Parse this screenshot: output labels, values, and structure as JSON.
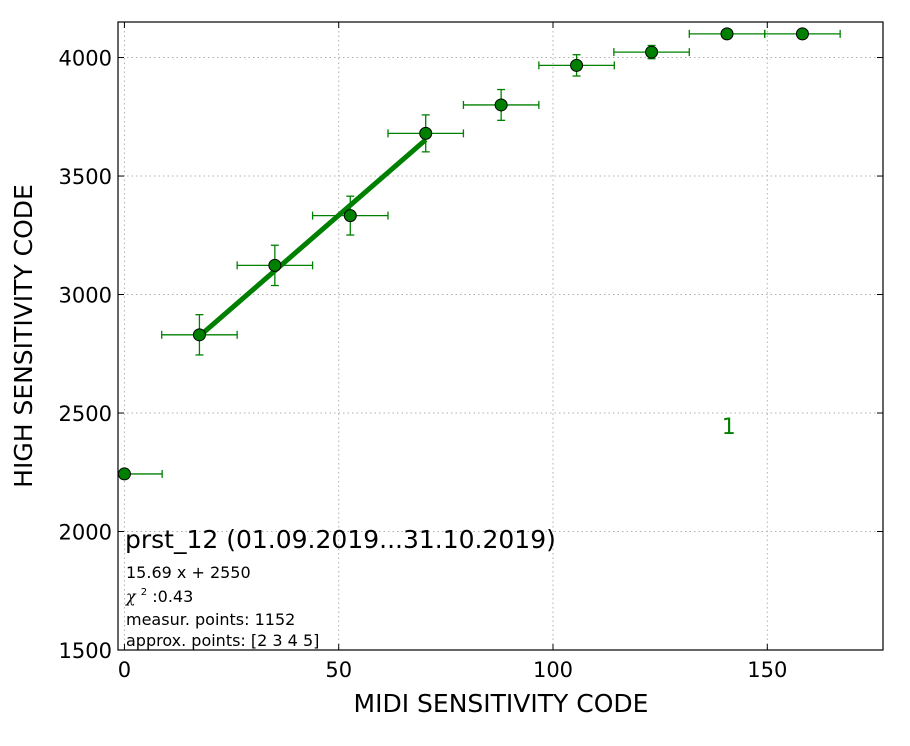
{
  "chart_data": {
    "type": "scatter",
    "xlabel": "MIDI SENSITIVITY CODE",
    "ylabel": "HIGH SENSITIVITY CODE",
    "xlim": [
      -1.5,
      177
    ],
    "ylim": [
      1500,
      4150
    ],
    "x_ticks": [
      0,
      50,
      100,
      150
    ],
    "y_ticks": [
      1500,
      2000,
      2500,
      3000,
      3500,
      4000
    ],
    "grid": true,
    "series": [
      {
        "color": "#008000",
        "marker": "circle",
        "points": [
          {
            "x": 0,
            "y": 2243,
            "xerr_low": 0,
            "xerr_high": 8.8,
            "yerr": 20
          },
          {
            "x": 17.5,
            "y": 2830,
            "xerr_low": 8.8,
            "xerr_high": 8.8,
            "yerr": 85
          },
          {
            "x": 35.1,
            "y": 3123,
            "xerr_low": 8.8,
            "xerr_high": 8.8,
            "yerr": 85
          },
          {
            "x": 52.7,
            "y": 3333,
            "xerr_low": 8.8,
            "xerr_high": 8.8,
            "yerr": 82
          },
          {
            "x": 70.3,
            "y": 3680,
            "xerr_low": 8.8,
            "xerr_high": 8.8,
            "yerr": 78
          },
          {
            "x": 87.9,
            "y": 3800,
            "xerr_low": 8.8,
            "xerr_high": 8.8,
            "yerr": 65
          },
          {
            "x": 105.5,
            "y": 3967,
            "xerr_low": 8.8,
            "xerr_high": 8.8,
            "yerr": 45
          },
          {
            "x": 123.0,
            "y": 4023,
            "xerr_low": 8.8,
            "xerr_high": 8.8,
            "yerr": 28
          },
          {
            "x": 140.6,
            "y": 4100,
            "xerr_low": 8.8,
            "xerr_high": 8.8,
            "yerr": 0
          },
          {
            "x": 158.2,
            "y": 4100,
            "xerr_low": 8.8,
            "xerr_high": 8.8,
            "yerr": 0
          }
        ]
      }
    ],
    "fit_line": {
      "slope": 15.69,
      "intercept": 2550,
      "x_range": [
        17.5,
        70.3
      ],
      "color": "#008000"
    },
    "series_label": {
      "text": "1",
      "x": 141,
      "y": 2445,
      "color": "#008000"
    },
    "annotation": {
      "title": "prst_12 (01.09.2019...31.10.2019)",
      "fit_text": "15.69 x + 2550",
      "chi_symbol": "χ",
      "chi_exp": "2",
      "chi_value": " :0.43",
      "measur_points": "measur. points: 1152",
      "approx_points": "approx. points: [2 3 4 5]"
    }
  }
}
